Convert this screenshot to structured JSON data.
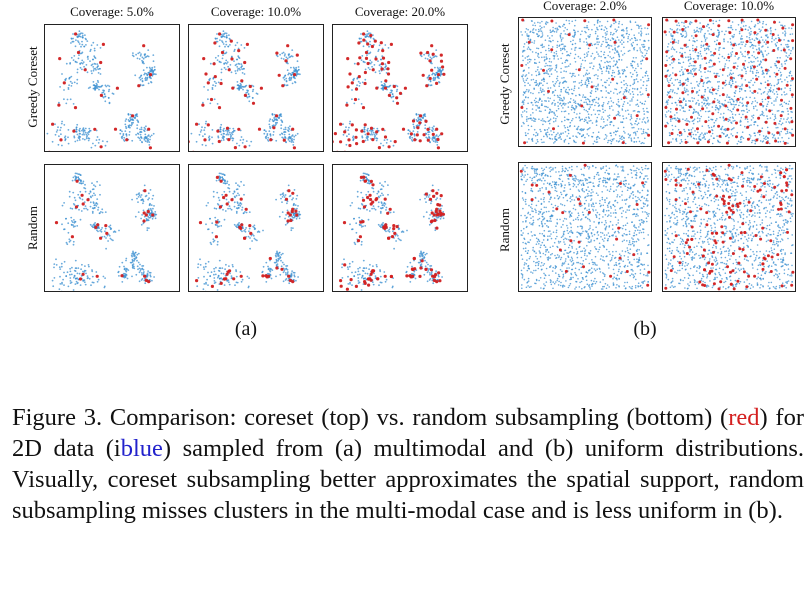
{
  "figure_a": {
    "col_titles": [
      "Coverage: 5.0%",
      "Coverage: 10.0%",
      "Coverage: 20.0%"
    ],
    "row_labels": [
      "Greedy Coreset",
      "Random"
    ],
    "sublabel": "(a)"
  },
  "figure_b": {
    "col_titles": [
      "Coverage: 2.0%",
      "Coverage: 10.0%"
    ],
    "row_labels": [
      "Greedy Coreset",
      "Random"
    ],
    "sublabel": "(b)"
  },
  "caption": {
    "part1": "Figure 3.  Comparison: coreset (top) vs.  random subsampling (bottom) (",
    "red_word": "red",
    "part2": ") for 2D data (i",
    "blue_word": "blue",
    "part3": ") sampled from (a) multimodal and (b) uniform distributions. Visually, coreset subsampling better approximates the spatial support, random subsampling misses clusters in the multi-modal case and is less uniform in (b)."
  },
  "colors": {
    "data_points": "#3a8fd0",
    "selected_points": "#d42020",
    "border": "#222222"
  },
  "chart_data": [
    {
      "type": "scatter",
      "title": "Coverage: 5.0%",
      "row": "Greedy Coreset",
      "distribution": "multimodal",
      "coverage_pct": 5.0
    },
    {
      "type": "scatter",
      "title": "Coverage: 10.0%",
      "row": "Greedy Coreset",
      "distribution": "multimodal",
      "coverage_pct": 10.0
    },
    {
      "type": "scatter",
      "title": "Coverage: 20.0%",
      "row": "Greedy Coreset",
      "distribution": "multimodal",
      "coverage_pct": 20.0
    },
    {
      "type": "scatter",
      "title": "Coverage: 5.0%",
      "row": "Random",
      "distribution": "multimodal",
      "coverage_pct": 5.0
    },
    {
      "type": "scatter",
      "title": "Coverage: 10.0%",
      "row": "Random",
      "distribution": "multimodal",
      "coverage_pct": 10.0
    },
    {
      "type": "scatter",
      "title": "Coverage: 20.0%",
      "row": "Random",
      "distribution": "multimodal",
      "coverage_pct": 20.0
    },
    {
      "type": "scatter",
      "title": "Coverage: 2.0%",
      "row": "Greedy Coreset",
      "distribution": "uniform",
      "coverage_pct": 2.0
    },
    {
      "type": "scatter",
      "title": "Coverage: 10.0%",
      "row": "Greedy Coreset",
      "distribution": "uniform",
      "coverage_pct": 10.0
    },
    {
      "type": "scatter",
      "title": "Coverage: 2.0%",
      "row": "Random",
      "distribution": "uniform",
      "coverage_pct": 2.0
    },
    {
      "type": "scatter",
      "title": "Coverage: 10.0%",
      "row": "Random",
      "distribution": "uniform",
      "coverage_pct": 10.0
    }
  ]
}
